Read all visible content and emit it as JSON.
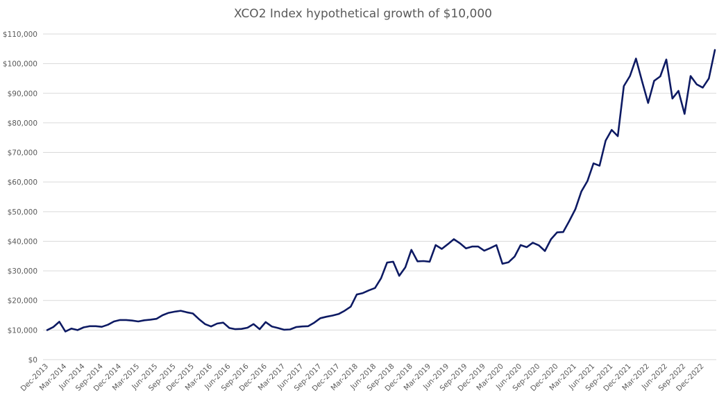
{
  "chart_data": {
    "type": "line",
    "title": "XCO2 Index hypothetical growth of $10,000",
    "xlabel": "",
    "ylabel": "",
    "ylim": [
      0,
      110000
    ],
    "y_ticks": [
      "$0",
      "$10,000",
      "$20,000",
      "$30,000",
      "$40,000",
      "$50,000",
      "$60,000",
      "$70,000",
      "$80,000",
      "$90,000",
      "$100,000",
      "$110,000"
    ],
    "x_tick_labels": [
      "Dec-2013",
      "Mar-2014",
      "Jun-2014",
      "Sep-2014",
      "Dec-2014",
      "Mar-2015",
      "Jun-2015",
      "Sep-2015",
      "Dec-2015",
      "Mar-2016",
      "Jun-2016",
      "Sep-2016",
      "Dec-2016",
      "Mar-2017",
      "Jun-2017",
      "Sep-2017",
      "Dec-2017",
      "Mar-2018",
      "Jun-2018",
      "Sep-2018",
      "Dec-2018",
      "Mar-2019",
      "Jun-2019",
      "Sep-2019",
      "Dec-2019",
      "Mar-2020",
      "Jun-2020",
      "Sep-2020",
      "Dec-2020",
      "Mar-2021",
      "Jun-2021",
      "Sep-2021",
      "Dec-2021",
      "Mar-2022",
      "Jun-2022",
      "Sep-2022",
      "Dec-2022"
    ],
    "grid": true,
    "legend": "none",
    "line_color": "#0d1a63",
    "series": [
      {
        "values": [
          10000,
          11000,
          12800,
          9500,
          10500,
          10000,
          10900,
          11300,
          11300,
          11100,
          11800,
          12900,
          13400,
          13400,
          13200,
          12900,
          13300,
          13500,
          13800,
          15000,
          15800,
          16200,
          16500,
          16000,
          15600,
          13700,
          12000,
          11200,
          12200,
          12500,
          10700,
          10300,
          10400,
          10800,
          12000,
          10300,
          12700,
          11200,
          10700,
          10100,
          10200,
          11000,
          11200,
          11300,
          12500,
          14000,
          14500,
          14900,
          15400,
          16500,
          17900,
          22000,
          22500,
          23400,
          24200,
          27500,
          32800,
          33100,
          28300,
          31200,
          37100,
          33200,
          33300,
          33100,
          38700,
          37400,
          39000,
          40700,
          39300,
          37600,
          38200,
          38200,
          36800,
          37700,
          38700,
          32400,
          32900,
          34800,
          38700,
          38000,
          39500,
          38600,
          36700,
          40700,
          43000,
          43100,
          46800,
          50800,
          56800,
          60300,
          66300,
          65500,
          74000,
          77600,
          75500,
          92400,
          95800,
          101700,
          94000,
          86700,
          94200,
          95700,
          101400,
          88200,
          90800,
          83000,
          95800,
          93000,
          91900,
          95000,
          104600
        ]
      }
    ]
  }
}
